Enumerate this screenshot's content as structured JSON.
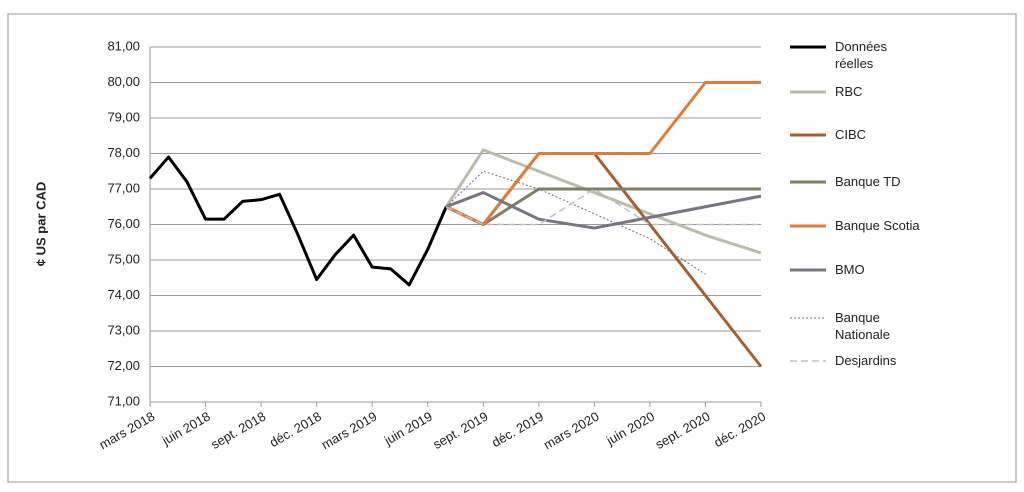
{
  "chart_data": {
    "type": "line",
    "y_label": "¢ US par CAD",
    "xlim": [
      2018.1667,
      2020.9167
    ],
    "xticks": [
      {
        "value": 2018.1667,
        "label": "mars 2018"
      },
      {
        "value": 2018.4167,
        "label": "juin 2018"
      },
      {
        "value": 2018.6667,
        "label": "sept. 2018"
      },
      {
        "value": 2018.9167,
        "label": "déc. 2018"
      },
      {
        "value": 2019.1667,
        "label": "mars 2019"
      },
      {
        "value": 2019.4167,
        "label": "juin 2019"
      },
      {
        "value": 2019.6667,
        "label": "sept. 2019"
      },
      {
        "value": 2019.9167,
        "label": "déc. 2019"
      },
      {
        "value": 2020.1667,
        "label": "mars 2020"
      },
      {
        "value": 2020.4167,
        "label": "juin 2020"
      },
      {
        "value": 2020.6667,
        "label": "sept. 2020"
      },
      {
        "value": 2020.9167,
        "label": "déc. 2020"
      }
    ],
    "ylim": [
      71,
      81
    ],
    "yticks": [
      {
        "value": 71,
        "label": "71,00"
      },
      {
        "value": 72,
        "label": "72,00"
      },
      {
        "value": 73,
        "label": "73,00"
      },
      {
        "value": 74,
        "label": "74,00"
      },
      {
        "value": 75,
        "label": "75,00"
      },
      {
        "value": 76,
        "label": "76,00"
      },
      {
        "value": 77,
        "label": "77,00"
      },
      {
        "value": 78,
        "label": "78,00"
      },
      {
        "value": 79,
        "label": "79,00"
      },
      {
        "value": 80,
        "label": "80,00"
      },
      {
        "value": 81,
        "label": "81,00"
      }
    ],
    "grid": true,
    "legend": "right",
    "series": [
      {
        "name": "Données réelles",
        "color": "#000000",
        "width": 3,
        "dash": "none",
        "x": [
          2018.1667,
          2018.25,
          2018.3333,
          2018.4167,
          2018.5,
          2018.5833,
          2018.6667,
          2018.75,
          2018.8333,
          2018.9167,
          2019.0,
          2019.0833,
          2019.1667,
          2019.25,
          2019.3333,
          2019.4167,
          2019.5
        ],
        "values": [
          77.3,
          77.9,
          77.2,
          76.15,
          76.15,
          76.65,
          76.7,
          76.85,
          75.7,
          74.45,
          75.15,
          75.7,
          74.8,
          74.75,
          74.3,
          75.3,
          76.5
        ]
      },
      {
        "name": "RBC",
        "color": "#bdbcaa",
        "width": 3,
        "dash": "none",
        "x": [
          2019.5,
          2019.6667,
          2019.9167,
          2020.1667,
          2020.4167,
          2020.6667,
          2020.9167
        ],
        "values": [
          76.5,
          78.1,
          77.5,
          76.9,
          76.3,
          75.7,
          75.2
        ]
      },
      {
        "name": "CIBC",
        "color": "#a65e2e",
        "width": 3,
        "dash": "none",
        "x": [
          2019.5,
          2019.6667,
          2019.9167,
          2020.1667,
          2020.4167,
          2020.6667,
          2020.9167
        ],
        "values": [
          76.5,
          76.0,
          78.0,
          78.0,
          76.0,
          74.0,
          72.0
        ]
      },
      {
        "name": "Banque TD",
        "color": "#7f7f68",
        "width": 3,
        "dash": "none",
        "x": [
          2019.5,
          2019.6667,
          2019.9167,
          2020.1667,
          2020.4167,
          2020.6667,
          2020.9167
        ],
        "values": [
          76.5,
          76.0,
          77.0,
          77.0,
          77.0,
          77.0,
          77.0
        ]
      },
      {
        "name": "Banque Scotia",
        "color": "#e07b39",
        "width": 3,
        "dash": "none",
        "x": [
          2019.5,
          2019.6667,
          2019.9167,
          2020.1667,
          2020.4167,
          2020.6667,
          2020.9167
        ],
        "values": [
          76.5,
          76.0,
          78.0,
          78.0,
          78.0,
          80.0,
          80.0
        ]
      },
      {
        "name": "BMO",
        "color": "#7a7480",
        "width": 3,
        "dash": "none",
        "x": [
          2019.5,
          2019.6667,
          2019.9167,
          2020.1667,
          2020.4167,
          2020.6667,
          2020.9167
        ],
        "values": [
          76.5,
          76.9,
          76.15,
          75.9,
          76.2,
          76.5,
          76.8
        ]
      },
      {
        "name": "Banque Nationale",
        "color": "#6a6a88",
        "width": 1,
        "dash": "2 2",
        "x": [
          2019.5,
          2019.6667,
          2019.9167,
          2020.1667,
          2020.4167,
          2020.6667
        ],
        "values": [
          76.5,
          77.5,
          77.0,
          76.3,
          75.6,
          74.6
        ]
      },
      {
        "name": "Desjardins",
        "color": "#c0c0c0",
        "width": 1.5,
        "dash": "7 4",
        "x": [
          2019.5,
          2019.6667,
          2019.9167,
          2020.1667,
          2020.4167,
          2020.6667,
          2020.9167
        ],
        "values": [
          76.5,
          76.0,
          76.0,
          77.0,
          76.0,
          76.0,
          76.0
        ]
      }
    ]
  }
}
